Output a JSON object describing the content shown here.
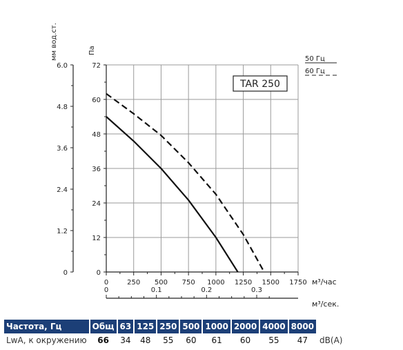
{
  "chart_data": {
    "type": "line",
    "model_label": "TAR 250",
    "ylabel_left": "мм вод.ст.",
    "ylabel": "Па",
    "xlabel_top": "м³/час",
    "xlabel_bottom": "м³/сек.",
    "y_ticks_pa": [
      "0",
      "12",
      "24",
      "36",
      "48",
      "60",
      "72"
    ],
    "y_ticks_mm": [
      "0",
      "1.2",
      "2.4",
      "3.6",
      "4.8",
      "6.0"
    ],
    "x_ticks_m3h": [
      "0",
      "250",
      "500",
      "750",
      "1000",
      "1250",
      "1500",
      "1750"
    ],
    "x_ticks_m3s": [
      "0",
      "0.1",
      "0.2",
      "0.3"
    ],
    "xlim": [
      0,
      1750
    ],
    "ylim": [
      0,
      72
    ],
    "grid": true,
    "legend_position": "top-right",
    "series": [
      {
        "name": "50 Гц",
        "line_style": "solid",
        "x": [
          0,
          250,
          500,
          750,
          1000,
          1200
        ],
        "y": [
          54,
          45.5,
          36,
          25,
          12,
          0
        ]
      },
      {
        "name": "60 Гц",
        "line_style": "dashed",
        "x": [
          0,
          250,
          500,
          750,
          1000,
          1250,
          1440
        ],
        "y": [
          62,
          55,
          47.5,
          38,
          27,
          13,
          0
        ]
      }
    ]
  },
  "spectrum_table": {
    "header": [
      "Частота, Гц",
      "Общ",
      "63",
      "125",
      "250",
      "500",
      "1000",
      "2000",
      "4000",
      "8000"
    ],
    "row_label": "LwA, к окружению",
    "total": "66",
    "values": [
      "34",
      "48",
      "55",
      "60",
      "61",
      "60",
      "55",
      "47"
    ],
    "unit": "dB(A)"
  },
  "colors": {
    "curve": "#111111",
    "grid": "#9a9a9a",
    "table_header_bg": "#1c3f77",
    "table_header_text": "#ffffff"
  }
}
